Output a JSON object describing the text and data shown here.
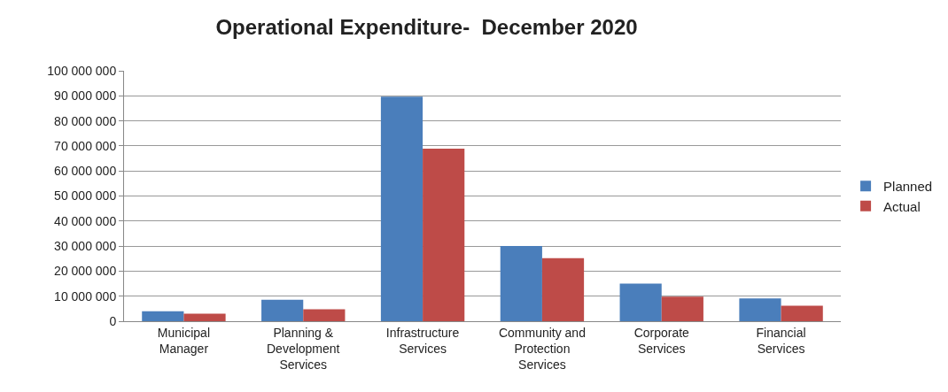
{
  "chart_data": {
    "type": "bar",
    "title": "Operational Expenditure-  December 2020",
    "categories": [
      "Municipal Manager",
      "Planning & Development Services",
      "Infrastructure Services",
      "Community and Protection Services",
      "Corporate Services",
      "Financial Services"
    ],
    "series": [
      {
        "name": "Planned",
        "color": "#4a7ebb",
        "values": [
          4000000,
          8600000,
          89700000,
          30000000,
          15000000,
          9100000
        ]
      },
      {
        "name": "Actual",
        "color": "#be4b48",
        "values": [
          3000000,
          4800000,
          68900000,
          25200000,
          9800000,
          6200000
        ]
      }
    ],
    "ylim": [
      0,
      100000000
    ],
    "yticks": [
      0,
      {
        "value": 10000000,
        "label": "10 000 000"
      },
      {
        "value": 20000000,
        "label": "20 000 000"
      },
      {
        "value": 30000000,
        "label": "30 000 000"
      },
      {
        "value": 40000000,
        "label": "40 000 000"
      },
      {
        "value": 50000000,
        "label": "50 000 000"
      },
      {
        "value": 60000000,
        "label": "60 000 000"
      },
      {
        "value": 70000000,
        "label": "70 000 000"
      },
      {
        "value": 80000000,
        "label": "80 000 000"
      },
      {
        "value": 90000000,
        "label": "90 000 000"
      },
      {
        "value": 100000000,
        "label": "100 000 000"
      }
    ],
    "grid": "y",
    "legend": "right"
  }
}
